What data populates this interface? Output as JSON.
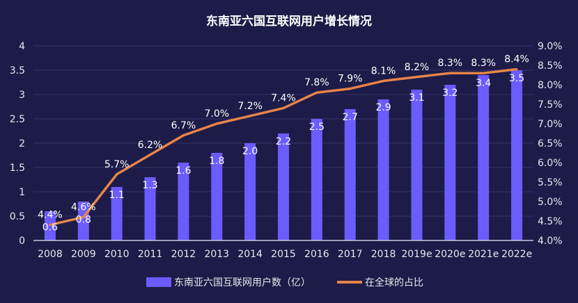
{
  "chart_data": {
    "type": "bar+line",
    "title": "东南亚六国互联网用户增长情况",
    "categories": [
      "2008",
      "2009",
      "2010",
      "2011",
      "2012",
      "2013",
      "2014",
      "2015",
      "2016",
      "2017",
      "2018",
      "2019e",
      "2020e",
      "2021e",
      "2022e"
    ],
    "series": [
      {
        "name": "东南亚六国互联网用户数（亿）",
        "type": "bar",
        "axis": "left",
        "color": "#6a5cff",
        "values": [
          0.6,
          0.8,
          1.1,
          1.3,
          1.6,
          1.8,
          2.0,
          2.2,
          2.5,
          2.7,
          2.9,
          3.1,
          3.2,
          3.4,
          3.5
        ],
        "labels": [
          "0.6",
          "0.8",
          "1.1",
          "1.3",
          "1.6",
          "1.8",
          "2.0",
          "2.2",
          "2.5",
          "2.7",
          "2.9",
          "3.1",
          "3.2",
          "3.4",
          "3.5"
        ]
      },
      {
        "name": "在全球的占比",
        "type": "line",
        "axis": "right",
        "color": "#e8834a",
        "values": [
          4.4,
          4.6,
          5.7,
          6.2,
          6.7,
          7.0,
          7.2,
          7.4,
          7.8,
          7.9,
          8.1,
          8.2,
          8.3,
          8.3,
          8.4
        ],
        "labels": [
          "4.4%",
          "4.6%",
          "5.7%",
          "6.2%",
          "6.7%",
          "7.0%",
          "7.2%",
          "7.4%",
          "7.8%",
          "7.9%",
          "8.1%",
          "8.2%",
          "8.3%",
          "8.3%",
          "8.4%"
        ]
      }
    ],
    "y_left": {
      "range": [
        0,
        4
      ],
      "ticks": [
        "0",
        "0.5",
        "1",
        "1.5",
        "2",
        "2.5",
        "3",
        "3.5",
        "4"
      ]
    },
    "y_right": {
      "range": [
        4.0,
        9.0
      ],
      "unit": "%",
      "ticks": [
        "4.0%",
        "4.5%",
        "5.0%",
        "5.5%",
        "6.0%",
        "6.5%",
        "7.0%",
        "7.5%",
        "8.0%",
        "8.5%",
        "9.0%"
      ]
    },
    "grid": true,
    "legend": "bottom-center",
    "background": "#1d1b47"
  }
}
